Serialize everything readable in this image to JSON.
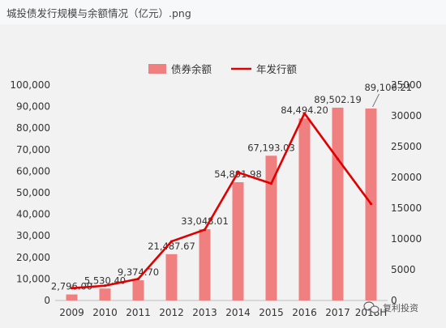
{
  "window": {
    "title": "城投债发行规模与余额情况（亿元）.png"
  },
  "watermark": {
    "text": "复利投资",
    "icon": "wechat-icon"
  },
  "chart_data": {
    "type": "bar",
    "categories": [
      "2009",
      "2010",
      "2011",
      "2012",
      "2013",
      "2014",
      "2015",
      "2016",
      "2017",
      "2018H"
    ],
    "series": [
      {
        "name": "债券余额",
        "kind": "bar",
        "axis": "left",
        "color": "#f08080",
        "values": [
          2796.0,
          5530.4,
          9374.7,
          21487.67,
          33048.01,
          54891.98,
          67193.03,
          84494.2,
          89502.19,
          89106.21
        ],
        "labels": [
          "2,796.00",
          "5,530.40",
          "9,374.70",
          "21,487.67",
          "33,048.01",
          "54,891.98",
          "67,193.03",
          "84,494.20",
          "89,502.19",
          "89,106.21"
        ]
      },
      {
        "name": "年发行额",
        "kind": "line",
        "axis": "right",
        "color": "#e00000",
        "values": [
          2000,
          2400,
          3500,
          9600,
          11500,
          20800,
          19000,
          30400,
          23000,
          15700
        ]
      }
    ],
    "y_left": {
      "ylim": [
        0,
        100000
      ],
      "ticks": [
        "0",
        "10,000",
        "20,000",
        "30,000",
        "40,000",
        "50,000",
        "60,000",
        "70,000",
        "80,000",
        "90,000",
        "100,000"
      ]
    },
    "y_right": {
      "ylim": [
        0,
        35000
      ],
      "ticks": [
        "0",
        "5000",
        "10000",
        "15000",
        "20000",
        "25000",
        "30000",
        "35000"
      ]
    },
    "legend": "top",
    "grid": false
  }
}
